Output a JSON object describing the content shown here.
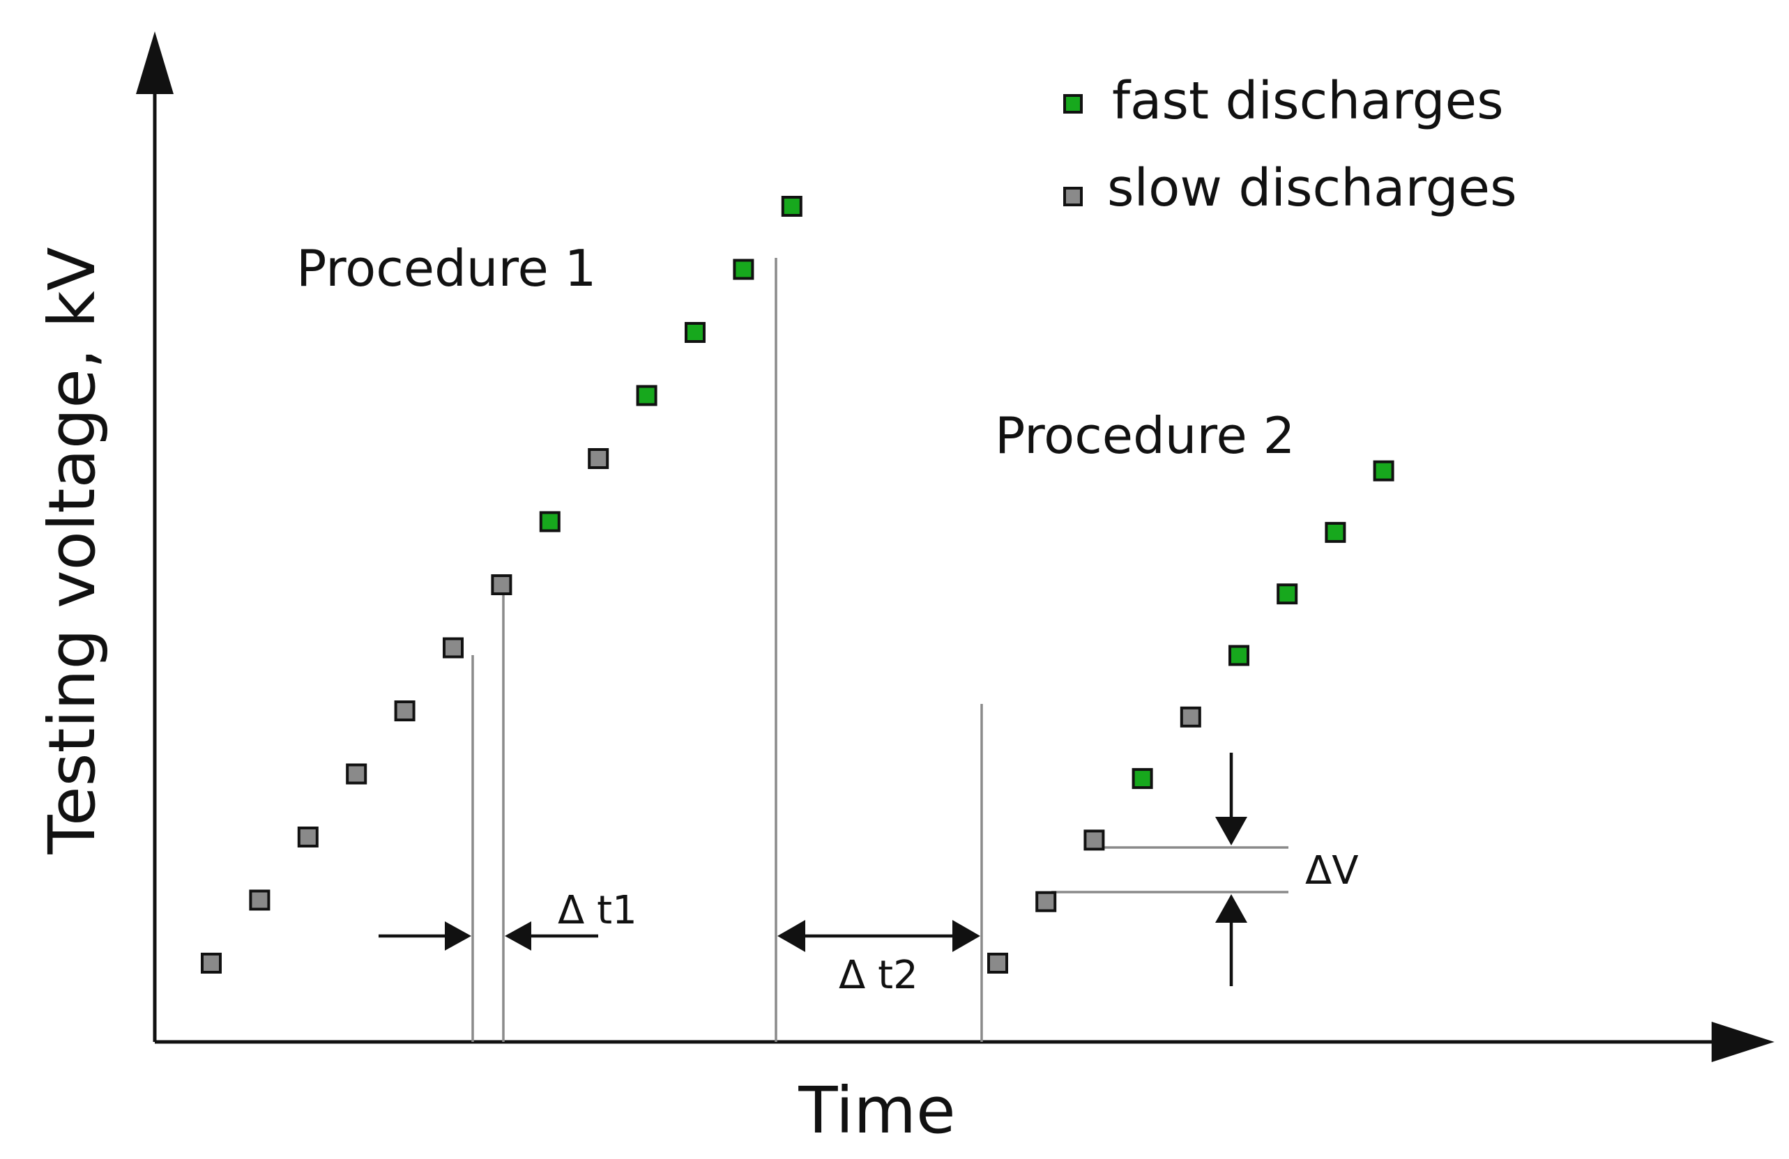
{
  "axes": {
    "y_label": "Testing voltage, kV",
    "x_label": "Time"
  },
  "legend": {
    "fast": "fast discharges",
    "slow": "slow discharges"
  },
  "procedures": {
    "p1_label": "Procedure 1",
    "p2_label": "Procedure 2"
  },
  "annotations": {
    "dt1": "Δ t1",
    "dt2": "Δ t2",
    "dv": "ΔV"
  },
  "series": {
    "procedure1": [
      "slow",
      "slow",
      "slow",
      "slow",
      "slow",
      "slow",
      "slow",
      "fast",
      "slow",
      "fast",
      "fast",
      "fast",
      "fast"
    ],
    "procedure2": [
      "slow",
      "slow",
      "slow",
      "fast",
      "slow",
      "fast",
      "fast",
      "fast",
      "fast"
    ]
  },
  "colors": {
    "fast": "#17a81d",
    "slow": "#8a8a8a"
  }
}
